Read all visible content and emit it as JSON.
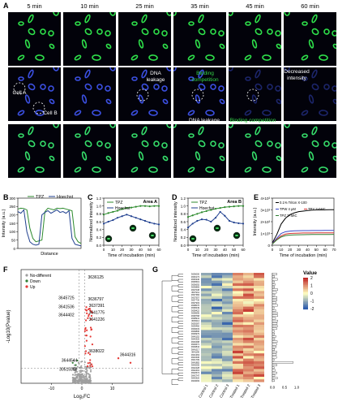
{
  "panel_labels": {
    "A": "A",
    "B": "B",
    "C": "C",
    "D": "D",
    "E": "E",
    "F": "F",
    "G": "G"
  },
  "times": [
    "5 min",
    "10 min",
    "25 min",
    "35 min",
    "45 min",
    "60 min"
  ],
  "annotations": {
    "cell_a": "Cell A",
    "cell_b": "Cell B",
    "dna_leakage_top": "DNA leakage",
    "binding_competition_top": "Binding competition",
    "decreased_intensity": "Decreased intensity",
    "dna_leakage_bottom": "DNA leakage",
    "binding_competition_bottom": "Binding competition",
    "scale_bar": "10 μm"
  },
  "colors": {
    "tpz": "#2c8a2c",
    "hoechst": "#1f3f8f",
    "down": "#2e7d32",
    "up": "#e53935",
    "nodiff": "#9e9e9e"
  },
  "chart_data": [
    {
      "type": "line",
      "panel": "B",
      "xlabel": "Distance",
      "ylabel": "Intensity (a.u.)",
      "ylim": [
        0,
        300
      ],
      "yticks": [
        "0",
        "50",
        "100",
        "150",
        "200",
        "250",
        "300"
      ],
      "series": [
        {
          "name": "TPZ",
          "values": [
            235,
            240,
            238,
            230,
            120,
            60,
            40,
            45,
            50,
            220,
            240,
            235,
            230,
            240,
            238,
            240,
            235,
            230,
            225,
            70,
            40,
            30
          ]
        },
        {
          "name": "Hoechst",
          "values": [
            220,
            210,
            230,
            100,
            40,
            25,
            20,
            25,
            200,
            215,
            225,
            210,
            220,
            230,
            215,
            220,
            210,
            225,
            60,
            25,
            20,
            15
          ]
        }
      ]
    },
    {
      "type": "line",
      "panel": "C",
      "title": "Area A",
      "xlabel": "Time of incubation (min)",
      "ylabel": "Normalized intensity",
      "xlim": [
        0,
        60
      ],
      "ylim": [
        0,
        1.2
      ],
      "xticks": [
        "0",
        "10",
        "20",
        "30",
        "40",
        "50",
        "60"
      ],
      "yticks": [
        "0.0",
        "0.2",
        "0.4",
        "0.6",
        "0.8",
        "1.0",
        "1.2"
      ],
      "x": [
        0,
        5,
        10,
        15,
        20,
        25,
        30,
        35,
        40,
        45,
        50,
        55,
        60
      ],
      "series": [
        {
          "name": "TPZ",
          "values": [
            0.78,
            0.82,
            0.85,
            0.88,
            0.92,
            0.95,
            0.96,
            0.98,
            1.0,
            1.0,
            0.99,
            1.0,
            1.0
          ]
        },
        {
          "name": "Hoechst",
          "values": [
            0.55,
            0.6,
            0.64,
            0.7,
            0.74,
            0.78,
            0.74,
            0.7,
            0.66,
            0.62,
            0.58,
            0.55,
            0.53
          ]
        }
      ]
    },
    {
      "type": "line",
      "panel": "D",
      "title": "Area B",
      "xlabel": "Time of incubation (min)",
      "ylabel": "Normalized intensity",
      "xlim": [
        0,
        60
      ],
      "ylim": [
        0,
        1.2
      ],
      "xticks": [
        "0",
        "10",
        "20",
        "30",
        "40",
        "50",
        "60"
      ],
      "yticks": [
        "0.0",
        "0.2",
        "0.4",
        "0.6",
        "0.8",
        "1.0",
        "1.2"
      ],
      "x": [
        0,
        5,
        10,
        15,
        20,
        25,
        30,
        35,
        40,
        45,
        50,
        55,
        60
      ],
      "series": [
        {
          "name": "TPZ",
          "values": [
            0.72,
            0.76,
            0.8,
            0.84,
            0.87,
            0.9,
            0.93,
            0.95,
            0.97,
            0.98,
            0.99,
            1.0,
            1.0
          ]
        },
        {
          "name": "Hoechst",
          "values": [
            0.45,
            0.55,
            0.62,
            0.66,
            0.65,
            0.6,
            0.7,
            0.85,
            0.75,
            0.62,
            0.58,
            0.56,
            0.55
          ]
        }
      ]
    },
    {
      "type": "line",
      "panel": "E",
      "xlabel": "Time of incubation (min)",
      "ylabel": "Intensity (a.u.)",
      "xlim": [
        0,
        70
      ],
      "ylim": [
        0,
        4000
      ],
      "xticks": [
        "0",
        "10",
        "20",
        "30",
        "40",
        "50",
        "60",
        "70"
      ],
      "yticks": [
        "0",
        "1×10³",
        "2×10³",
        "3×10³",
        "4×10³"
      ],
      "x": [
        0,
        5,
        10,
        15,
        20,
        25,
        30,
        35,
        40,
        45,
        50,
        55,
        60,
        65,
        70
      ],
      "series": [
        {
          "name": "0.1% Triton X-100",
          "values": [
            200,
            900,
            1800,
            2300,
            2600,
            2750,
            2850,
            2900,
            2950,
            2980,
            3000,
            3000,
            3010,
            3020,
            3020
          ]
        },
        {
          "name": "TPW 4 μM",
          "values": [
            150,
            600,
            1000,
            1150,
            1200,
            1220,
            1230,
            1240,
            1240,
            1250,
            1250,
            1250,
            1255,
            1255,
            1260
          ]
        },
        {
          "name": "TPY 2×MIC",
          "values": [
            120,
            500,
            800,
            950,
            1000,
            1020,
            1030,
            1040,
            1040,
            1045,
            1050,
            1050,
            1050,
            1055,
            1055
          ]
        },
        {
          "name": "TPZ 2×MIC",
          "values": [
            100,
            450,
            700,
            820,
            860,
            880,
            890,
            900,
            905,
            910,
            912,
            915,
            915,
            918,
            920
          ]
        }
      ]
    },
    {
      "type": "scatter",
      "panel": "F",
      "xlabel": "Log₂FC",
      "ylabel": "-Log10(Pvalue)",
      "xlim": [
        -20,
        20
      ],
      "ylim": [
        0,
        10
      ],
      "xticks": [
        "-10",
        "0",
        "10"
      ],
      "legend": [
        "No-different",
        "Down",
        "Up"
      ],
      "labels": [
        "3636125",
        "3636797",
        "3637391",
        "3641775",
        "3641226",
        "3645725",
        "3641536",
        "3644402",
        "3638022",
        "3644544",
        "3644316",
        "30515368"
      ]
    },
    {
      "type": "heatmap",
      "panel": "G",
      "title": "Value",
      "legend_ticks": [
        "2",
        "1",
        "0",
        "-1",
        "-2"
      ],
      "columns": [
        "Control 1",
        "Control 2",
        "Control 3",
        "Treated 1",
        "Treated 2",
        "Treated 3"
      ]
    }
  ]
}
